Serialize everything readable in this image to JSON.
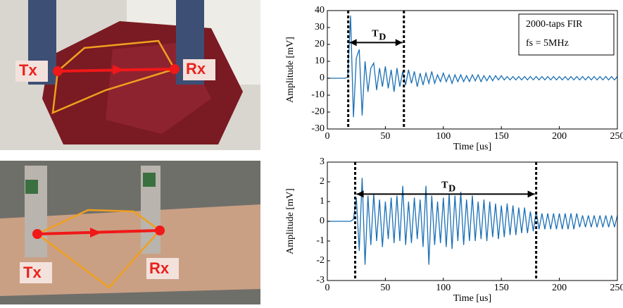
{
  "photos": [
    {
      "tx": "Tx",
      "rx": "Rx"
    },
    {
      "tx": "Tx",
      "rx": "Rx"
    }
  ],
  "chart_data": [
    {
      "type": "line",
      "color": "#1a6fb5",
      "xlabel": "Time [us]",
      "ylabel": "Amplitude [mV]",
      "xlim": [
        0,
        250
      ],
      "xticks": [
        0,
        50,
        100,
        150,
        200,
        250
      ],
      "ylim": [
        -30,
        40
      ],
      "yticks": [
        -30,
        -20,
        -10,
        0,
        10,
        20,
        30,
        40
      ],
      "markers": [
        18,
        66
      ],
      "marker_text": "T",
      "marker_sub": "D",
      "notes": [
        "2000-taps FIR",
        "fs = 5MHz"
      ],
      "x": [
        0,
        2.5,
        5,
        7.5,
        10,
        12.5,
        15,
        17.5,
        20,
        22.5,
        25,
        27.5,
        30,
        32.5,
        35,
        37.5,
        40,
        42.5,
        45,
        47.5,
        50,
        52.5,
        55,
        57.5,
        60,
        62.5,
        65,
        67.5,
        70,
        72.5,
        75,
        77.5,
        80,
        82.5,
        85,
        87.5,
        90,
        92.5,
        95,
        97.5,
        100,
        102.5,
        105,
        107.5,
        110,
        112.5,
        115,
        117.5,
        120,
        122.5,
        125,
        127.5,
        130,
        132.5,
        135,
        137.5,
        140,
        142.5,
        145,
        147.5,
        150,
        152.5,
        155,
        157.5,
        160,
        162.5,
        165,
        167.5,
        170,
        172.5,
        175,
        177.5,
        180,
        182.5,
        185,
        187.5,
        190,
        192.5,
        195,
        197.5,
        200,
        202.5,
        205,
        207.5,
        210,
        212.5,
        215,
        217.5,
        220,
        222.5,
        225,
        227.5,
        230,
        232.5,
        235,
        237.5,
        240,
        242.5,
        245,
        247.5,
        250
      ],
      "values": [
        0,
        0,
        0,
        0,
        0,
        0,
        0,
        0.5,
        37,
        -23,
        12,
        17,
        -22,
        10,
        -8,
        6,
        9,
        -7,
        6,
        -5,
        7,
        -6,
        5,
        -8,
        6,
        -5,
        4,
        -4,
        5,
        -3,
        4,
        -5,
        3,
        -4,
        3,
        -3,
        4,
        -3,
        2,
        -2,
        3,
        -2,
        2,
        -3,
        2,
        -2,
        2,
        -2,
        1.5,
        -2,
        2,
        -1.5,
        2,
        -2,
        1.5,
        -1.5,
        1.5,
        -1.5,
        1.5,
        -1,
        1.5,
        -1,
        1,
        -1,
        1,
        -1,
        1,
        -1,
        1,
        -1,
        1,
        -1,
        1,
        -1,
        1,
        -1,
        1,
        -1,
        1,
        -1,
        1,
        -1,
        1,
        -1,
        1,
        -1,
        1,
        -1,
        1,
        -1,
        1,
        -1,
        1,
        -1,
        1,
        -1,
        1,
        -1,
        1,
        -1,
        1
      ]
    },
    {
      "type": "line",
      "color": "#1a6fb5",
      "xlabel": "Time [us]",
      "ylabel": "Amplitude [mV]",
      "xlim": [
        0,
        250
      ],
      "xticks": [
        0,
        50,
        100,
        150,
        200,
        250
      ],
      "ylim": [
        -3,
        3
      ],
      "yticks": [
        -3,
        -2,
        -1,
        0,
        1,
        2,
        3
      ],
      "markers": [
        24,
        180
      ],
      "marker_text": "T",
      "marker_sub": "D",
      "x": [
        0,
        2.5,
        5,
        7.5,
        10,
        12.5,
        15,
        17.5,
        20,
        22.5,
        25,
        27.5,
        30,
        32.5,
        35,
        37.5,
        40,
        42.5,
        45,
        47.5,
        50,
        52.5,
        55,
        57.5,
        60,
        62.5,
        65,
        67.5,
        70,
        72.5,
        75,
        77.5,
        80,
        82.5,
        85,
        87.5,
        90,
        92.5,
        95,
        97.5,
        100,
        102.5,
        105,
        107.5,
        110,
        112.5,
        115,
        117.5,
        120,
        122.5,
        125,
        127.5,
        130,
        132.5,
        135,
        137.5,
        140,
        142.5,
        145,
        147.5,
        150,
        152.5,
        155,
        157.5,
        160,
        162.5,
        165,
        167.5,
        170,
        172.5,
        175,
        177.5,
        180,
        182.5,
        185,
        187.5,
        190,
        192.5,
        195,
        197.5,
        200,
        202.5,
        205,
        207.5,
        210,
        212.5,
        215,
        217.5,
        220,
        222.5,
        225,
        227.5,
        230,
        232.5,
        235,
        237.5,
        240,
        242.5,
        245,
        247.5,
        250
      ],
      "values": [
        0,
        0,
        0,
        0,
        0,
        0,
        0,
        0,
        0,
        0.1,
        1.2,
        -1.5,
        2.2,
        -2.2,
        1.3,
        -1.2,
        1.4,
        -1,
        1.1,
        -1.3,
        1,
        -0.9,
        1.2,
        -1.1,
        1.3,
        -1,
        1.8,
        -1.2,
        1,
        -1.1,
        1.2,
        -0.9,
        1.1,
        -1.3,
        1.8,
        -2.2,
        1.3,
        -1.2,
        1,
        -1.1,
        1.2,
        -1.3,
        1.4,
        -1.4,
        1.3,
        -1,
        1.5,
        -1.2,
        1.1,
        -1,
        1.3,
        -1,
        1,
        -0.9,
        1.1,
        -1,
        1,
        -0.8,
        0.9,
        -0.9,
        0.8,
        -0.8,
        0.9,
        -0.7,
        0.8,
        -0.7,
        0.7,
        -0.6,
        0.7,
        -0.6,
        0.5,
        -0.5,
        0.5,
        -0.4,
        0.4,
        -0.4,
        0.4,
        -0.4,
        0.4,
        -0.4,
        0.4,
        -0.4,
        0.4,
        -0.4,
        0.4,
        -0.4,
        0.4,
        -0.3,
        0.3,
        -0.3,
        0.3,
        -0.3,
        0.3,
        -0.3,
        0.3,
        -0.3,
        0.3,
        -0.3,
        0.3,
        -0.3,
        0.3
      ]
    }
  ]
}
